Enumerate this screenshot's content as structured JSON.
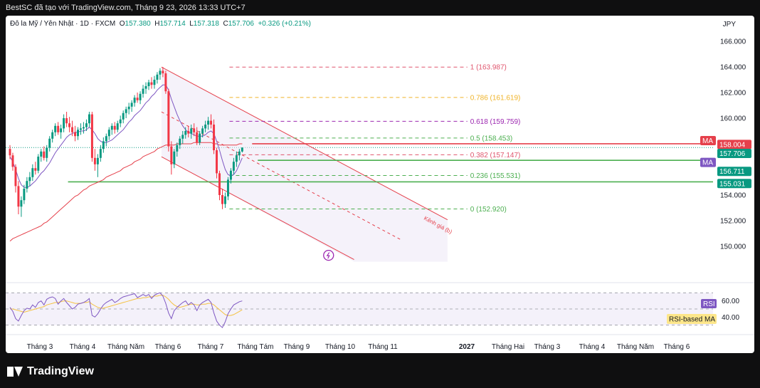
{
  "header": {
    "text": "BestSC đã tạo với TradingView.com, Tháng 9 23, 2026 13:33 UTC+7"
  },
  "legend": {
    "symbol": "Đô la Mỹ / Yên Nhật · 1D · FXCM",
    "open_label": "O",
    "open": "157.380",
    "high_label": "H",
    "high": "157.714",
    "low_label": "L",
    "low": "157.318",
    "close_label": "C",
    "close": "157.706",
    "change": "+0.326 (+0.21%)"
  },
  "currency": "JPY",
  "footer": {
    "brand": "TradingView"
  },
  "colors": {
    "up": "#089981",
    "down": "#f23645",
    "ma_short": "#7e57c2",
    "ma_long": "#e5404b",
    "support": "#4caf50",
    "rsi": "#7e57c2",
    "rsi_ma": "#f5c242"
  },
  "chart_data": {
    "type": "candlestick",
    "price_axis": {
      "min": 148.0,
      "max": 167.0,
      "ticks": [
        "166.000",
        "164.000",
        "162.000",
        "160.000",
        "158.000",
        "156.000",
        "154.000",
        "152.000",
        "150.000"
      ]
    },
    "time_axis": [
      "Tháng 3",
      "Tháng 4",
      "Tháng Năm",
      "Tháng 6",
      "Tháng 7",
      "Tháng Tám",
      "Tháng 9",
      "Tháng 10",
      "Tháng 11",
      "2027",
      "Tháng Hai",
      "Tháng 3",
      "Tháng 4",
      "Tháng Năm",
      "Tháng 6"
    ],
    "price_tags": [
      {
        "label": "MA",
        "color": "#e5404b",
        "price": 158.25
      },
      {
        "label": "158.004",
        "color": "#e5404b",
        "price": 157.95
      },
      {
        "label": "157.706",
        "color": "#089981",
        "price": 157.25
      },
      {
        "label": "MA",
        "color": "#7e57c2",
        "price": 156.55
      },
      {
        "label": "156.711",
        "color": "#089981",
        "price": 155.85
      },
      {
        "label": "155.031",
        "color": "#089981",
        "price": 154.9
      }
    ],
    "fibonacci": [
      {
        "level": "1 (163.987)",
        "price": 163.987,
        "color": "#e0556d"
      },
      {
        "level": "0.786 (161.619)",
        "price": 161.619,
        "color": "#f0b429"
      },
      {
        "level": "0.618 (159.759)",
        "price": 159.759,
        "color": "#9c27b0"
      },
      {
        "level": "0.5 (158.453)",
        "price": 158.453,
        "color": "#4caf50"
      },
      {
        "level": "0.382 (157.147)",
        "price": 157.147,
        "color": "#e0556d"
      },
      {
        "level": "0.236 (155.531)",
        "price": 155.531,
        "color": "#4caf50"
      },
      {
        "level": "0 (152.920)",
        "price": 152.92,
        "color": "#4caf50"
      }
    ],
    "channel_label": "Kênh giá (b)",
    "horizontal_levels": [
      {
        "price": 158.004,
        "color": "#e5404b"
      },
      {
        "price": 156.711,
        "color": "#4caf50"
      },
      {
        "price": 155.031,
        "color": "#4caf50"
      }
    ],
    "candles": [
      [
        157.6,
        157.9,
        156.8,
        157.1
      ],
      [
        157.1,
        157.3,
        155.9,
        156.2
      ],
      [
        156.2,
        156.4,
        154.2,
        154.7
      ],
      [
        154.7,
        155.1,
        152.5,
        153.1
      ],
      [
        153.1,
        153.9,
        152.3,
        153.6
      ],
      [
        153.6,
        154.8,
        153.3,
        154.5
      ],
      [
        154.5,
        155.4,
        154.2,
        155.1
      ],
      [
        155.1,
        155.8,
        154.7,
        155.4
      ],
      [
        155.4,
        156.4,
        155.1,
        156.1
      ],
      [
        156.1,
        156.6,
        155.6,
        155.9
      ],
      [
        155.9,
        157.2,
        155.7,
        157.0
      ],
      [
        157.0,
        157.6,
        156.6,
        157.4
      ],
      [
        157.4,
        157.8,
        156.7,
        156.9
      ],
      [
        156.9,
        157.9,
        156.6,
        157.7
      ],
      [
        157.7,
        158.6,
        157.4,
        158.4
      ],
      [
        158.4,
        159.1,
        158.1,
        158.9
      ],
      [
        158.9,
        159.6,
        158.6,
        159.4
      ],
      [
        159.4,
        159.7,
        158.7,
        158.9
      ],
      [
        158.9,
        159.5,
        158.4,
        159.2
      ],
      [
        159.2,
        160.3,
        158.9,
        160.0
      ],
      [
        160.0,
        160.5,
        159.3,
        159.6
      ],
      [
        159.6,
        160.1,
        158.9,
        159.3
      ],
      [
        159.3,
        159.8,
        158.6,
        158.9
      ],
      [
        158.9,
        159.4,
        158.2,
        158.6
      ],
      [
        158.6,
        159.3,
        158.3,
        159.1
      ],
      [
        159.1,
        159.6,
        158.7,
        159.2
      ],
      [
        159.2,
        159.7,
        158.8,
        159.3
      ],
      [
        159.3,
        159.9,
        159.0,
        159.6
      ],
      [
        159.6,
        160.5,
        159.3,
        160.3
      ],
      [
        160.3,
        160.5,
        156.6,
        156.9
      ],
      [
        156.9,
        157.6,
        155.9,
        156.4
      ],
      [
        156.4,
        157.2,
        155.4,
        156.9
      ],
      [
        156.9,
        157.9,
        156.6,
        157.6
      ],
      [
        157.6,
        158.5,
        157.3,
        158.2
      ],
      [
        158.2,
        158.8,
        157.8,
        158.6
      ],
      [
        158.6,
        159.3,
        158.3,
        159.1
      ],
      [
        159.1,
        159.6,
        158.7,
        159.4
      ],
      [
        159.4,
        159.7,
        158.8,
        159.1
      ],
      [
        159.1,
        159.8,
        158.9,
        159.6
      ],
      [
        159.6,
        160.2,
        159.3,
        159.9
      ],
      [
        159.9,
        160.6,
        159.6,
        160.4
      ],
      [
        160.4,
        160.9,
        160.0,
        160.7
      ],
      [
        160.7,
        161.2,
        160.3,
        160.9
      ],
      [
        160.9,
        161.4,
        160.5,
        161.2
      ],
      [
        161.2,
        161.8,
        160.9,
        161.6
      ],
      [
        161.6,
        162.0,
        161.2,
        161.4
      ],
      [
        161.4,
        162.1,
        161.1,
        161.9
      ],
      [
        161.9,
        162.6,
        161.6,
        162.3
      ],
      [
        162.3,
        162.8,
        161.9,
        162.5
      ],
      [
        162.5,
        163.0,
        162.2,
        162.8
      ],
      [
        162.8,
        163.2,
        162.3,
        162.6
      ],
      [
        162.6,
        163.3,
        162.3,
        163.0
      ],
      [
        163.0,
        163.6,
        162.7,
        163.4
      ],
      [
        163.4,
        163.9,
        163.0,
        163.7
      ],
      [
        163.7,
        163.99,
        163.2,
        163.5
      ],
      [
        163.5,
        163.7,
        161.9,
        162.1
      ],
      [
        162.1,
        162.3,
        157.4,
        157.8
      ],
      [
        157.8,
        158.2,
        155.6,
        156.4
      ],
      [
        156.4,
        157.6,
        156.1,
        157.4
      ],
      [
        157.4,
        158.1,
        157.0,
        157.9
      ],
      [
        157.9,
        158.6,
        157.6,
        158.4
      ],
      [
        158.4,
        159.0,
        158.0,
        158.7
      ],
      [
        158.7,
        159.3,
        158.4,
        159.0
      ],
      [
        159.0,
        159.4,
        158.5,
        158.8
      ],
      [
        158.8,
        159.5,
        158.4,
        159.2
      ],
      [
        159.2,
        159.6,
        158.6,
        158.9
      ],
      [
        158.9,
        159.3,
        157.9,
        158.1
      ],
      [
        158.1,
        159.0,
        157.9,
        158.8
      ],
      [
        158.8,
        159.4,
        158.5,
        159.2
      ],
      [
        159.2,
        159.8,
        158.9,
        159.5
      ],
      [
        159.5,
        160.1,
        159.1,
        159.8
      ],
      [
        159.8,
        160.3,
        159.2,
        159.5
      ],
      [
        159.5,
        159.9,
        157.2,
        157.5
      ],
      [
        157.5,
        157.7,
        155.3,
        155.7
      ],
      [
        155.7,
        155.9,
        153.6,
        154.0
      ],
      [
        154.0,
        154.5,
        152.9,
        153.3
      ],
      [
        153.3,
        154.2,
        153.0,
        153.9
      ],
      [
        153.9,
        155.4,
        153.6,
        155.2
      ],
      [
        155.2,
        156.1,
        154.9,
        155.9
      ],
      [
        155.9,
        156.9,
        155.6,
        156.6
      ],
      [
        156.6,
        157.4,
        156.2,
        157.1
      ],
      [
        157.1,
        157.6,
        156.7,
        157.4
      ],
      [
        157.4,
        157.714,
        157.318,
        157.706
      ]
    ],
    "ma_short": [
      157.0,
      156.6,
      156.0,
      155.3,
      154.8,
      154.6,
      154.6,
      154.7,
      154.9,
      155.1,
      155.4,
      155.7,
      155.9,
      156.2,
      156.5,
      156.9,
      157.3,
      157.6,
      157.9,
      158.2,
      158.5,
      158.7,
      158.8,
      158.9,
      158.9,
      159.0,
      159.0,
      159.1,
      159.3,
      159.1,
      158.8,
      158.4,
      158.2,
      158.1,
      158.1,
      158.2,
      158.3,
      158.5,
      158.7,
      158.9,
      159.1,
      159.4,
      159.7,
      159.9,
      160.2,
      160.4,
      160.6,
      160.9,
      161.2,
      161.4,
      161.7,
      161.9,
      162.2,
      162.4,
      162.6,
      162.6,
      162.2,
      161.5,
      160.9,
      160.3,
      159.8,
      159.4,
      159.1,
      158.9,
      158.8,
      158.7,
      158.6,
      158.6,
      158.6,
      158.7,
      158.9,
      159.0,
      158.8,
      158.2,
      157.5,
      156.7,
      156.0,
      155.6,
      155.5,
      155.6,
      155.9,
      156.4,
      156.9
    ],
    "ma_long": [
      150.4,
      150.6,
      150.7,
      150.8,
      150.9,
      151.0,
      151.1,
      151.2,
      151.3,
      151.4,
      151.5,
      151.6,
      151.8,
      151.9,
      152.1,
      152.3,
      152.5,
      152.7,
      152.9,
      153.1,
      153.3,
      153.5,
      153.7,
      153.9,
      154.0,
      154.2,
      154.4,
      154.5,
      154.7,
      154.8,
      154.9,
      155.0,
      155.1,
      155.2,
      155.4,
      155.5,
      155.6,
      155.7,
      155.8,
      155.9,
      156.1,
      156.2,
      156.3,
      156.4,
      156.6,
      156.7,
      156.8,
      157.0,
      157.1,
      157.2,
      157.3,
      157.4,
      157.6,
      157.7,
      157.8,
      157.9,
      157.9,
      157.9,
      157.9,
      158.0,
      158.0,
      158.0,
      158.0,
      158.0,
      158.0,
      158.1,
      158.1,
      158.1,
      158.1,
      158.1,
      158.1,
      158.1,
      158.0,
      158.0,
      157.9,
      157.9,
      157.9,
      157.9,
      157.9,
      157.9,
      157.9,
      158.0,
      158.0
    ],
    "rsi": {
      "axis_ticks": [
        "60.00",
        "40.00"
      ],
      "min": 20,
      "max": 80,
      "upper": 70,
      "lower": 30,
      "mid": 50,
      "label": "RSI",
      "ma_label": "RSI-based MA",
      "values": [
        52,
        47,
        38,
        35,
        42,
        48,
        51,
        50,
        55,
        52,
        58,
        60,
        55,
        62,
        64,
        65,
        63,
        56,
        60,
        63,
        58,
        54,
        50,
        52,
        56,
        57,
        58,
        60,
        63,
        42,
        40,
        44,
        50,
        55,
        58,
        60,
        62,
        58,
        60,
        63,
        65,
        66,
        67,
        68,
        69,
        64,
        66,
        68,
        66,
        68,
        63,
        67,
        69,
        70,
        66,
        57,
        45,
        38,
        48,
        52,
        55,
        58,
        60,
        55,
        58,
        55,
        48,
        55,
        58,
        60,
        62,
        58,
        45,
        35,
        30,
        27,
        34,
        44,
        50,
        55,
        57,
        59,
        60
      ],
      "ma_values": [
        50,
        50,
        49,
        48,
        47,
        46,
        47,
        48,
        49,
        50,
        51,
        52,
        53,
        55,
        56,
        57,
        58,
        58,
        59,
        60,
        60,
        59,
        58,
        57,
        57,
        57,
        58,
        58,
        59,
        56,
        54,
        52,
        51,
        51,
        52,
        53,
        54,
        55,
        56,
        57,
        58,
        59,
        60,
        61,
        62,
        63,
        63,
        64,
        64,
        65,
        65,
        66,
        66,
        67,
        67,
        65,
        62,
        58,
        55,
        53,
        52,
        53,
        54,
        55,
        56,
        56,
        55,
        55,
        56,
        56,
        57,
        57,
        55,
        52,
        49,
        46,
        43,
        42,
        42,
        43,
        45,
        47,
        49
      ]
    }
  }
}
